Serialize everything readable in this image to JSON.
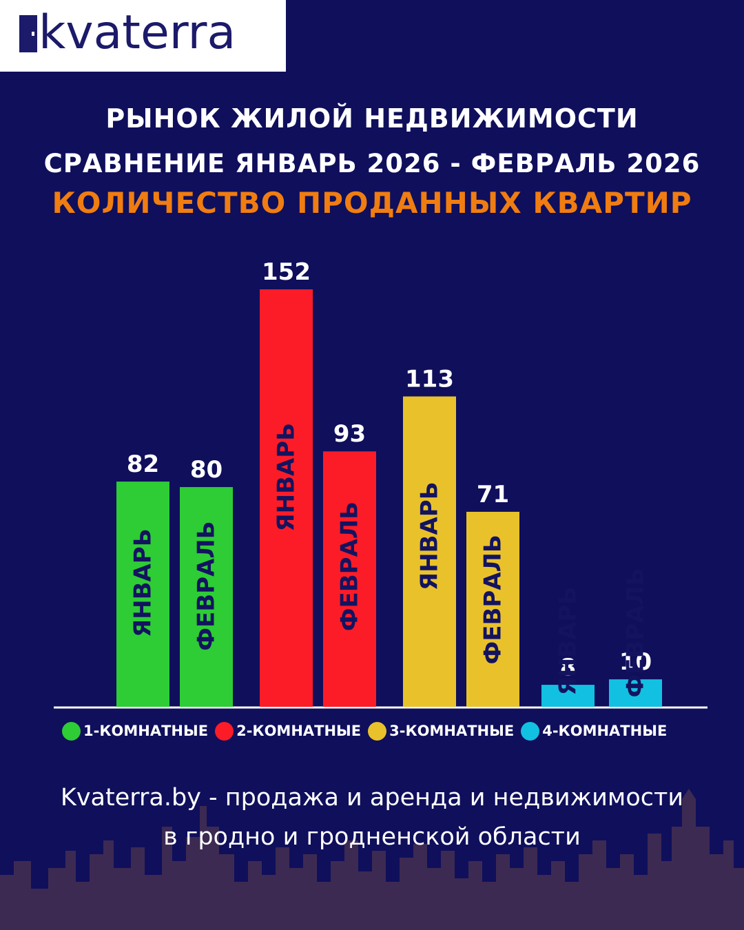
{
  "brand": {
    "logo_text": "kvaterra"
  },
  "header": {
    "line1": "РЫНОК ЖИЛОЙ НЕДВИЖИМОСТИ",
    "line2": "СРАВНЕНИЕ ЯНВАРЬ 2026 - ФЕВРАЛЬ 2026",
    "line3": "КОЛИЧЕСТВО ПРОДАННЫХ КВАРТИР"
  },
  "chart_data": {
    "type": "bar",
    "title": "КОЛИЧЕСТВО ПРОДАННЫХ КВАРТИР",
    "categories": [
      "1-КОМНАТНЫЕ",
      "2-КОМНАТНЫЕ",
      "3-КОМНАТНЫЕ",
      "4-КОМНАТНЫЕ"
    ],
    "series": [
      {
        "name": "ЯНВАРЬ",
        "values": [
          82,
          152,
          113,
          8
        ]
      },
      {
        "name": "ФЕВРАЛЬ",
        "values": [
          80,
          93,
          71,
          10
        ]
      }
    ],
    "colors": [
      "#2ecc35",
      "#fb1c27",
      "#e9c22b",
      "#12c1e1"
    ],
    "bar_label_color": "#131360",
    "legend_position": "bottom",
    "ylim": [
      0,
      152
    ]
  },
  "legend": [
    {
      "label": "1-КОМНАТНЫЕ",
      "color": "#2ecc35"
    },
    {
      "label": "2-КОМНАТНЫЕ",
      "color": "#fb1c27"
    },
    {
      "label": "3-КОМНАТНЫЕ",
      "color": "#e9c22b"
    },
    {
      "label": "4-КОМНАТНЫЕ",
      "color": "#12c1e1"
    }
  ],
  "footer": {
    "line1": "Kvaterra.by - продажа и аренда и недвижимости",
    "line2": "в гродно и гродненской области"
  },
  "colors": {
    "background": "#0f0f5c",
    "accent": "#f07d11",
    "skyline": "#3d2a52"
  }
}
